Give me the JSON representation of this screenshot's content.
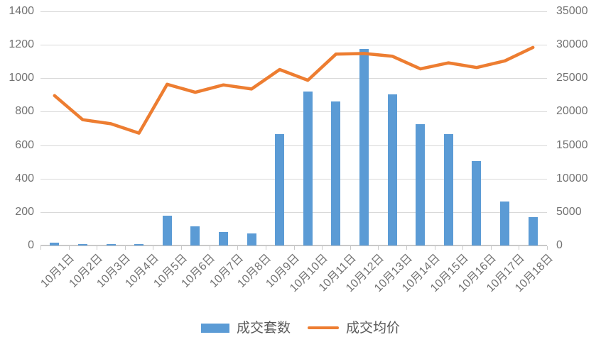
{
  "chart_data": {
    "type": "bar",
    "subtype": "combo-bar-line-dual-axis",
    "title": "",
    "categories": [
      "10月1日",
      "10月2日",
      "10月3日",
      "10月4日",
      "10月5日",
      "10月6日",
      "10月7日",
      "10月8日",
      "10月9日",
      "10月10日",
      "10月11日",
      "10月12日",
      "10月13日",
      "10月14日",
      "10月15日",
      "10月16日",
      "10月17日",
      "10月18日"
    ],
    "series": [
      {
        "name": "成交套数",
        "type": "bar",
        "axis": "left",
        "color": "#5B9BD5",
        "values": [
          15,
          8,
          8,
          8,
          180,
          115,
          80,
          72,
          668,
          920,
          862,
          1175,
          905,
          726,
          667,
          505,
          262,
          170
        ]
      },
      {
        "name": "成交均价",
        "type": "line",
        "axis": "right",
        "color": "#ED7D31",
        "values": [
          22400,
          18800,
          18200,
          16800,
          24100,
          22900,
          24000,
          23400,
          26300,
          24700,
          28600,
          28700,
          28300,
          26400,
          27300,
          26600,
          27600,
          29600
        ]
      }
    ],
    "left_axis": {
      "min": 0,
      "max": 1400,
      "step": 200,
      "ticks": [
        0,
        200,
        400,
        600,
        800,
        1000,
        1200,
        1400
      ]
    },
    "right_axis": {
      "min": 0,
      "max": 35000,
      "step": 5000,
      "ticks": [
        0,
        5000,
        10000,
        15000,
        20000,
        25000,
        30000,
        35000
      ]
    },
    "grid": true,
    "legend_position": "bottom",
    "colors": {
      "gridline": "#d9d9d9",
      "axis_line": "#c9c9c9",
      "axis_text": "#737373",
      "legend_text": "#595959",
      "background": "#ffffff"
    }
  }
}
